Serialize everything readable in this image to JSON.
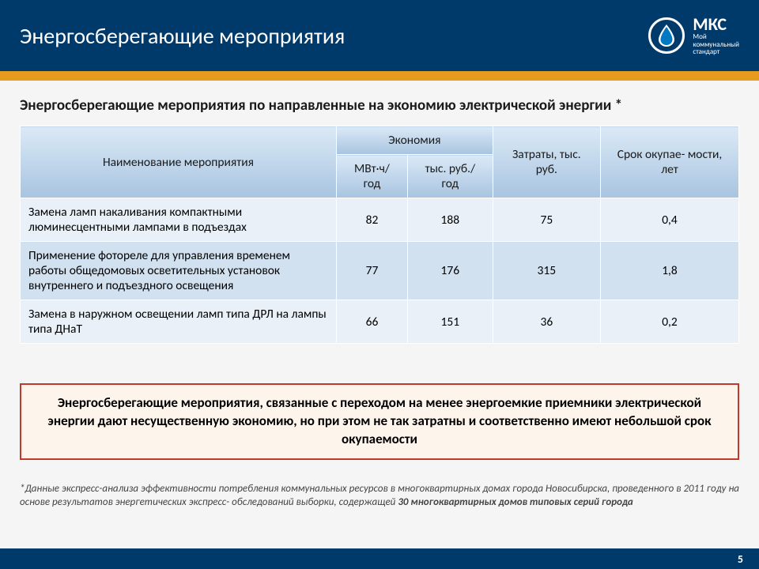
{
  "header": {
    "title": "Энергосберегающие мероприятия",
    "logo_abbrev": "МКС",
    "logo_line1": "Мой",
    "logo_line2": "коммунальный",
    "logo_line3": "стандарт",
    "bg_color": "#003a6a",
    "accent_color": "#e69b1f"
  },
  "subtitle": "Энергосберегающие мероприятия по направленные на экономию электрической энергии *",
  "table": {
    "header_bg_gradient_top": "#dbe9f6",
    "header_bg_gradient_bottom": "#a8c4e0",
    "row_even_bg": "#e9f0f8",
    "row_odd_bg": "#d2e1f0",
    "columns": {
      "name": "Наименование мероприятия",
      "economy_group": "Экономия",
      "economy_mwh": "МВт·ч/ год",
      "economy_rub": "тыс. руб./ год",
      "cost": "Затраты, тыс. руб.",
      "payback": "Срок окупае- мости, лет"
    },
    "rows": [
      {
        "name": "Замена ламп накаливания компактными люминесцентными лампами в подъездах",
        "mwh": "82",
        "rub": "188",
        "cost": "75",
        "payback": "0,4"
      },
      {
        "name": "Применение фотореле для управления временем работы общедомовых осветительных установок внутреннего и подъездного освещения",
        "mwh": "77",
        "rub": "176",
        "cost": "315",
        "payback": "1,8"
      },
      {
        "name": "Замена в наружном освещении ламп типа ДРЛ на лампы типа ДНаТ",
        "mwh": "66",
        "rub": "151",
        "cost": "36",
        "payback": "0,2"
      }
    ]
  },
  "callout": {
    "text": "Энергосберегающие мероприятия, связанные с переходом на менее энергоемкие приемники электрической энергии дают несущественную экономию, но при этом не так затратны и соответственно имеют небольшой срок окупаемости",
    "border_color": "#c0392b",
    "bg_color": "#fdf4ec"
  },
  "footnote": {
    "prefix": "*Данные экспресс-анализа эффективности потребления коммунальных ресурсов в многоквартирных домах города Новосибирска, проведенного в 2011 году на основе результатов энергетических экспресс- обследований выборки, содержащей ",
    "bold": "30 многоквартирных домов типовых серий города"
  },
  "page_number": "5"
}
